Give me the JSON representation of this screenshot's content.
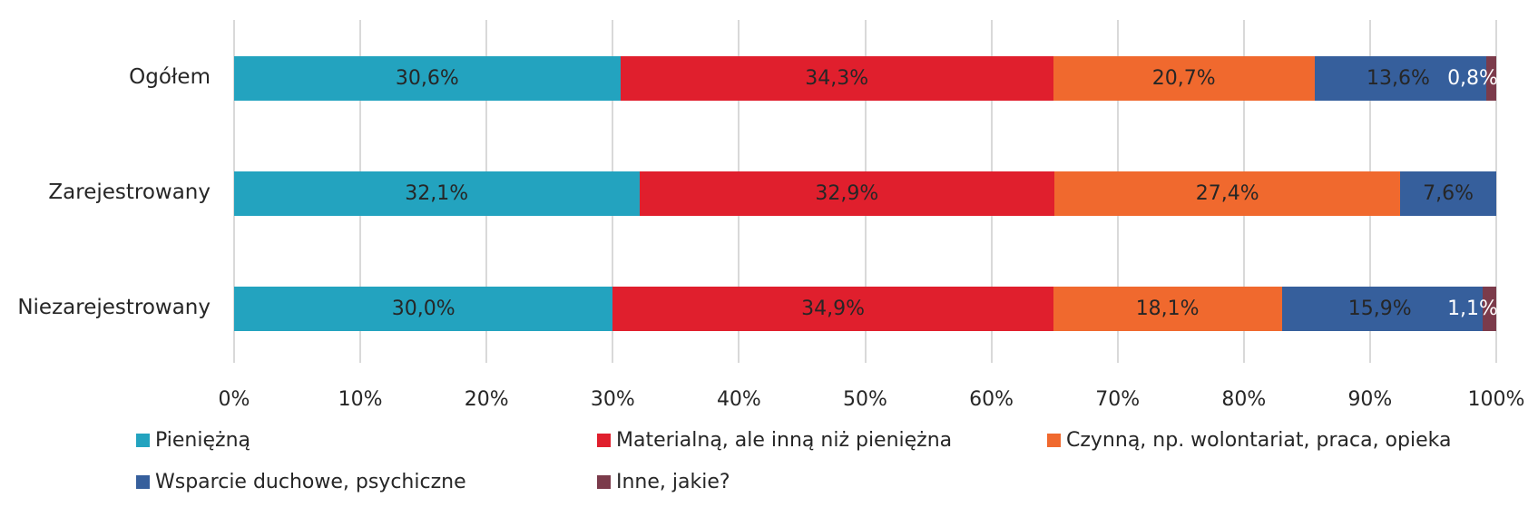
{
  "chart_data": {
    "type": "bar",
    "orientation": "horizontal",
    "stacked": true,
    "categories": [
      "Ogółem",
      "Zarejestrowany",
      "Niezarejestrowany"
    ],
    "series": [
      {
        "name": "Pieniężną",
        "color": "#23a3bf",
        "values": [
          30.6,
          32.1,
          30.0
        ],
        "labels": [
          "30,6%",
          "32,1%",
          "30,0%"
        ]
      },
      {
        "name": "Materialną, ale inną niż pieniężna",
        "color": "#e01f2d",
        "values": [
          34.3,
          32.9,
          34.9
        ],
        "labels": [
          "34,3%",
          "32,9%",
          "34,9%"
        ]
      },
      {
        "name": "Czynną, np. wolontariat, praca, opieka",
        "color": "#f0692e",
        "values": [
          20.7,
          27.4,
          18.1
        ],
        "labels": [
          "20,7%",
          "27,4%",
          "18,1%"
        ]
      },
      {
        "name": "Wsparcie duchowe, psychiczne",
        "color": "#365f9c",
        "values": [
          13.6,
          7.6,
          15.9
        ],
        "labels": [
          "13,6%",
          "7,6%",
          "15,9%"
        ]
      },
      {
        "name": "Inne, jakie?",
        "color": "#7b3b4b",
        "values": [
          0.8,
          0.0,
          1.1
        ],
        "labels": [
          "0,8%",
          "",
          "1,1%"
        ]
      }
    ],
    "xlim": [
      0,
      100
    ],
    "xticks": [
      "0%",
      "10%",
      "20%",
      "30%",
      "40%",
      "50%",
      "60%",
      "70%",
      "80%",
      "90%",
      "100%"
    ],
    "grid": true,
    "legend_position": "bottom",
    "title": "",
    "xlabel": "",
    "ylabel": ""
  },
  "legend": {
    "items": [
      {
        "label": "Pieniężną",
        "color": "#23a3bf"
      },
      {
        "label": "Materialną, ale inną niż pieniężna",
        "color": "#e01f2d"
      },
      {
        "label": "Czynną, np. wolontariat, praca, opieka",
        "color": "#f0692e"
      },
      {
        "label": "Wsparcie duchowe, psychiczne",
        "color": "#365f9c"
      },
      {
        "label": "Inne, jakie?",
        "color": "#7b3b4b"
      }
    ]
  }
}
